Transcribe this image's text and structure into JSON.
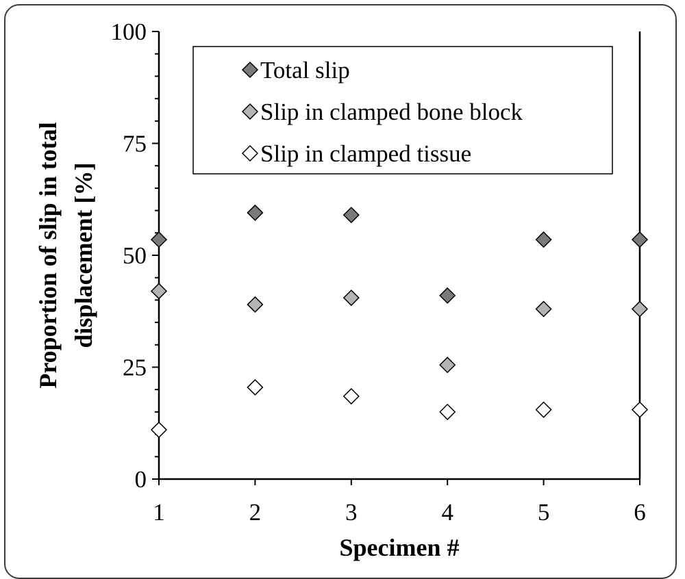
{
  "chart_data": {
    "type": "scatter",
    "xlabel": "Specimen #",
    "ylabel_lines": [
      "Proportion of slip in total",
      "displacement [%]"
    ],
    "xlim": [
      1,
      6
    ],
    "ylim": [
      0,
      100
    ],
    "x_ticks": [
      1,
      2,
      3,
      4,
      5,
      6
    ],
    "y_ticks": [
      0,
      25,
      50,
      75,
      100
    ],
    "x_tick_labels": [
      "1",
      "2",
      "3",
      "4",
      "5",
      "6"
    ],
    "y_tick_labels": [
      "0",
      "25",
      "50",
      "75",
      "100"
    ],
    "legend_position": "top",
    "grid": false,
    "series": [
      {
        "name": "Total slip",
        "color": "#7a7a7a",
        "x": [
          1,
          2,
          3,
          4,
          5,
          6
        ],
        "values": [
          53.5,
          59.5,
          59.0,
          41.0,
          53.5,
          53.5
        ]
      },
      {
        "name": "Slip in clamped bone block",
        "color": "#b4b4b4",
        "x": [
          1,
          2,
          3,
          4,
          5,
          6
        ],
        "values": [
          42.0,
          39.0,
          40.5,
          25.5,
          38.0,
          38.0
        ]
      },
      {
        "name": "Slip in clamped tissue",
        "color": "#ffffff",
        "x": [
          1,
          2,
          3,
          4,
          5,
          6
        ],
        "values": [
          11.0,
          20.5,
          18.5,
          15.0,
          15.5,
          15.5
        ]
      }
    ]
  }
}
